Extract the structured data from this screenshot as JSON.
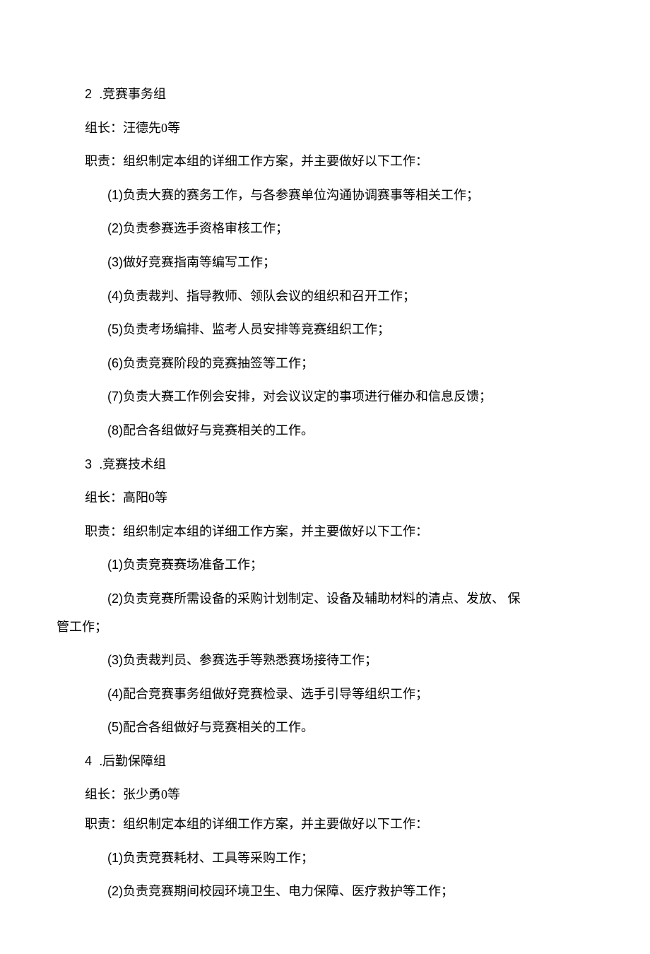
{
  "text_color": "#000000",
  "background_color": "#ffffff",
  "base_font_size": 18,
  "sections": {
    "s2": {
      "number": "2",
      "title": ".竞赛事务组",
      "leader_label": "组长：",
      "leader_value": "汪德先0等",
      "intro": "职责：组织制定本组的详细工作方案，并主要做好以下工作：",
      "items": {
        "i1": {
          "num": "(1)",
          "text": "负责大赛的赛务工作，与各参赛单位沟通协调赛事等相关工作；"
        },
        "i2": {
          "num": "(2)",
          "text": "负责参赛选手资格审核工作；"
        },
        "i3": {
          "num": "(3)",
          "text": "做好竞赛指南等编写工作；"
        },
        "i4": {
          "num": "(4)",
          "text": "负责裁判、指导教师、领队会议的组织和召开工作；"
        },
        "i5": {
          "num": "(5)",
          "text": "负责考场编排、监考人员安排等竞赛组织工作；"
        },
        "i6": {
          "num": "(6)",
          "text": "负责竞赛阶段的竞赛抽签等工作；"
        },
        "i7": {
          "num": "(7)",
          "text": "负责大赛工作例会安排，对会议议定的事项进行催办和信息反馈；"
        },
        "i8": {
          "num": "(8)",
          "text": "配合各组做好与竞赛相关的工作。"
        }
      }
    },
    "s3": {
      "number": "3",
      "title": ".竞赛技术组",
      "leader_label": "组长：",
      "leader_value": "高阳0等",
      "intro": "职责：组织制定本组的详细工作方案，并主要做好以下工作：",
      "items": {
        "i1": {
          "num": "(1)",
          "text": "负责竞赛赛场准备工作；"
        },
        "i2": {
          "num": "(2)",
          "text_line1": "负责竞赛所需设备的采购计划制定、设备及辅助材料的清点、发放、 保",
          "text_line2": "管工作；"
        },
        "i3": {
          "num": "(3)",
          "text": "负责裁判员、参赛选手等熟悉赛场接待工作；"
        },
        "i4": {
          "num": "(4)",
          "text": "配合竞赛事务组做好竞赛检录、选手引导等组织工作；"
        },
        "i5": {
          "num": "(5)",
          "text": "配合各组做好与竞赛相关的工作。"
        }
      }
    },
    "s4": {
      "number": "4",
      "title": ".后勤保障组",
      "leader_label": "组长：",
      "leader_value": "张少勇0等",
      "intro": "职责：组织制定本组的详细工作方案，并主要做好以下工作：",
      "items": {
        "i1": {
          "num": "(1)",
          "text": "负责竞赛耗材、工具等采购工作；"
        },
        "i2": {
          "num": "(2)",
          "text": "负责竞赛期间校园环境卫生、电力保障、医疗救护等工作；"
        }
      }
    }
  }
}
